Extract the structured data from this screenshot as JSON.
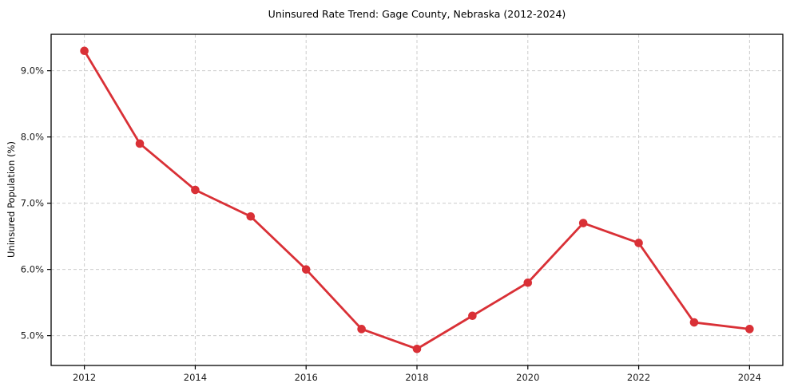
{
  "chart_data": {
    "type": "line",
    "title": "Uninsured Rate Trend: Gage County, Nebraska (2012-2024)",
    "xlabel": "",
    "ylabel": "Uninsured Population (%)",
    "x": [
      2012,
      2013,
      2014,
      2015,
      2016,
      2017,
      2018,
      2019,
      2020,
      2021,
      2022,
      2023,
      2024
    ],
    "values": [
      9.3,
      7.9,
      7.2,
      6.8,
      6.0,
      5.1,
      4.8,
      5.3,
      5.8,
      6.7,
      6.4,
      5.2,
      5.1
    ],
    "xlim": [
      2011.4,
      2024.6
    ],
    "ylim": [
      4.55,
      9.55
    ],
    "x_ticks": [
      {
        "value": 2012,
        "label": "2012"
      },
      {
        "value": 2014,
        "label": "2014"
      },
      {
        "value": 2016,
        "label": "2016"
      },
      {
        "value": 2018,
        "label": "2018"
      },
      {
        "value": 2020,
        "label": "2020"
      },
      {
        "value": 2022,
        "label": "2022"
      },
      {
        "value": 2024,
        "label": "2024"
      }
    ],
    "y_ticks": [
      {
        "value": 5.0,
        "label": "5.0%"
      },
      {
        "value": 6.0,
        "label": "6.0%"
      },
      {
        "value": 7.0,
        "label": "7.0%"
      },
      {
        "value": 8.0,
        "label": "8.0%"
      },
      {
        "value": 9.0,
        "label": "9.0%"
      }
    ],
    "grid": true,
    "grid_style": "dashed",
    "legend": false,
    "line_color": "#d93036",
    "grid_color": "#cccccc",
    "axis_color": "#000000",
    "tick_text_color": "#1a1a1a",
    "background": "#ffffff"
  }
}
